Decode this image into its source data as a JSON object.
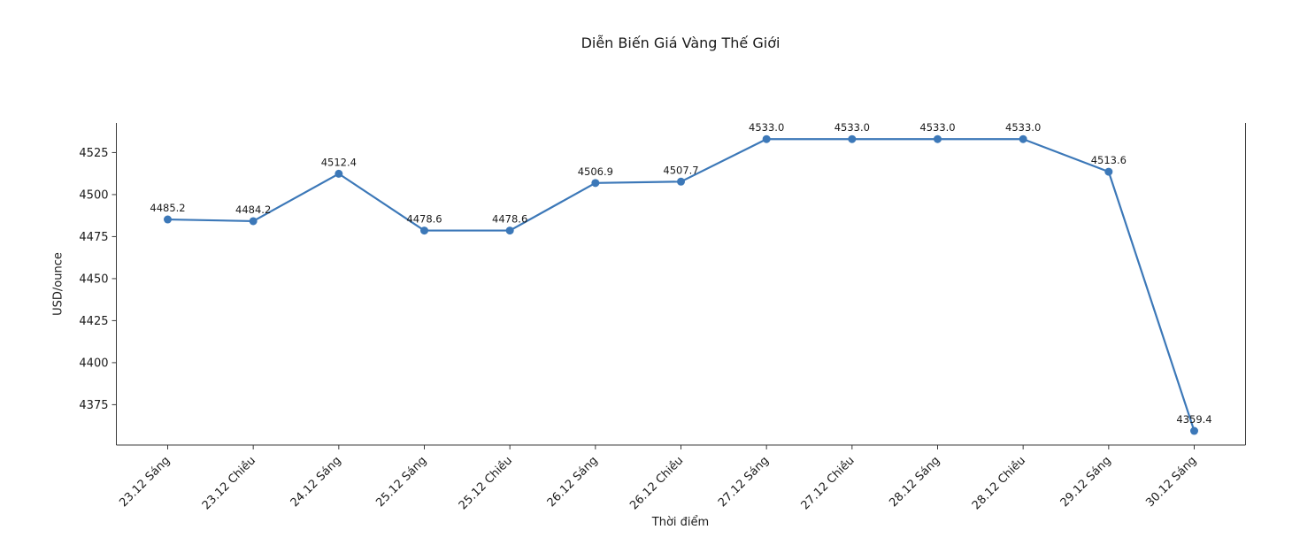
{
  "chart_data": {
    "type": "line",
    "title": "Diễn Biến Giá Vàng Thế Giới",
    "xlabel": "Thời điểm",
    "ylabel": "USD/ounce",
    "categories": [
      "23.12 Sáng",
      "23.12 Chiều",
      "24.12 Sáng",
      "25.12 Sáng",
      "25.12 Chiều",
      "26.12 Sáng",
      "26.12 Chiều",
      "27.12 Sáng",
      "27.12 Chiều",
      "28.12 Sáng",
      "28.12 Chiều",
      "29.12 Sáng",
      "30.12 Sáng"
    ],
    "values": [
      4485.2,
      4484.2,
      4512.4,
      4478.6,
      4478.6,
      4506.9,
      4507.7,
      4533.0,
      4533.0,
      4533.0,
      4533.0,
      4513.6,
      4359.4
    ],
    "point_labels": [
      "4485.2",
      "4484.2",
      "4512.4",
      "4478.6",
      "4478.6",
      "4506.9",
      "4507.7",
      "4533.0",
      "4533.0",
      "4533.0",
      "4533.0",
      "4513.6",
      "4359.4"
    ],
    "yticks": [
      4375,
      4400,
      4425,
      4450,
      4475,
      4500,
      4525
    ],
    "ylim": [
      4351.0,
      4542.6
    ],
    "xtick_rotation": 45,
    "grid": false,
    "legend_position": "none",
    "line_color": "#3c78b8",
    "marker": "o",
    "text_color": "#1a1a1a",
    "axis_color": "#3a3a3a",
    "background": "#ffffff"
  }
}
